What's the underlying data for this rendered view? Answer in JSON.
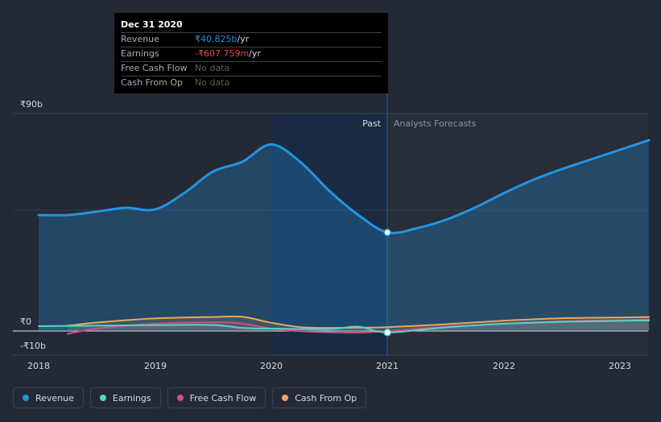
{
  "tooltip": {
    "date": "Dec 31 2020",
    "rows": [
      {
        "label": "Revenue",
        "value": "₹40.825b",
        "unit": " /yr"
      },
      {
        "label": "Earnings",
        "value": "-₹607.759m",
        "unit": " /yr"
      },
      {
        "label": "Free Cash Flow",
        "value": "No data",
        "unit": ""
      },
      {
        "label": "Cash From Op",
        "value": "No data",
        "unit": ""
      }
    ]
  },
  "markers": {
    "past": "Past",
    "forecast": "Analysts Forecasts"
  },
  "legend": [
    {
      "label": "Revenue",
      "color": "#2394df"
    },
    {
      "label": "Earnings",
      "color": "#56d3c7"
    },
    {
      "label": "Free Cash Flow",
      "color": "#c8508a"
    },
    {
      "label": "Cash From Op",
      "color": "#e8a85c"
    }
  ],
  "chart_data": {
    "type": "area",
    "y_tick_labels": [
      "₹90b",
      "₹0",
      "-₹10b"
    ],
    "x_tick_labels": [
      "2018",
      "2019",
      "2020",
      "2021",
      "2022",
      "2023"
    ],
    "ylim": [
      -10,
      90
    ],
    "xlim": [
      2018.0,
      2023.25
    ],
    "divider_x": 2021.0,
    "grid": true,
    "series": [
      {
        "name": "Revenue",
        "color": "#2394df",
        "x": [
          2018.0,
          2018.25,
          2018.5,
          2018.75,
          2019.0,
          2019.25,
          2019.5,
          2019.75,
          2020.0,
          2020.25,
          2020.5,
          2020.75,
          2021.0,
          2021.25,
          2021.5,
          2021.75,
          2022.0,
          2022.25,
          2022.5,
          2022.75,
          2023.0,
          2023.25
        ],
        "y": [
          48.0,
          48.0,
          49.4,
          51.0,
          50.3,
          57.0,
          66.0,
          70.0,
          77.2,
          70.0,
          58.0,
          48.0,
          40.8,
          42.5,
          46.0,
          51.0,
          57.0,
          62.5,
          67.0,
          71.0,
          75.0,
          79.0
        ]
      },
      {
        "name": "Earnings",
        "color": "#56d3c7",
        "x": [
          2018.0,
          2018.5,
          2019.0,
          2019.5,
          2019.75,
          2020.0,
          2020.5,
          2020.75,
          2021.0,
          2021.5,
          2022.0,
          2022.5,
          2023.0,
          2023.25
        ],
        "y": [
          2.0,
          2.2,
          2.4,
          2.5,
          1.3,
          1.0,
          0.8,
          1.8,
          -0.6,
          1.5,
          3.0,
          3.8,
          4.2,
          4.4
        ]
      },
      {
        "name": "Free Cash Flow",
        "color": "#c8508a",
        "x": [
          2018.25,
          2018.5,
          2019.0,
          2019.5,
          2019.75,
          2020.0,
          2020.25,
          2020.5,
          2020.75,
          2021.0,
          2021.5,
          2022.0,
          2022.5,
          2023.0,
          2023.25
        ],
        "y": [
          -1.2,
          1.0,
          3.0,
          3.6,
          3.1,
          1.0,
          -0.1,
          -0.5,
          -0.7,
          -0.1,
          1.7,
          3.0,
          4.0,
          4.5,
          4.8
        ]
      },
      {
        "name": "Cash From Op",
        "color": "#e8a85c",
        "x": [
          2018.25,
          2018.5,
          2019.0,
          2019.5,
          2019.75,
          2020.0,
          2020.25,
          2020.5,
          2020.75,
          2021.0,
          2021.5,
          2022.0,
          2022.5,
          2023.0,
          2023.25
        ],
        "y": [
          2.2,
          3.5,
          5.2,
          5.8,
          5.9,
          3.4,
          1.6,
          1.3,
          1.4,
          1.6,
          2.8,
          4.3,
          5.3,
          5.6,
          5.8
        ]
      }
    ]
  }
}
